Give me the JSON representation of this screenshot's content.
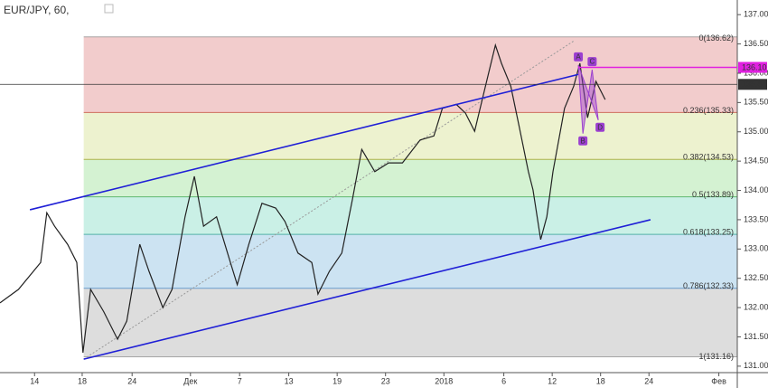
{
  "chart_data": {
    "type": "line",
    "title": "EUR/JPY, 60,",
    "xlim": [
      0,
      96
    ],
    "ylim": [
      130.89,
      137.25
    ],
    "xticks": [
      {
        "value": 4.5,
        "label": "14"
      },
      {
        "value": 10.7,
        "label": "18"
      },
      {
        "value": 17.2,
        "label": "24"
      },
      {
        "value": 24.8,
        "label": "Дек"
      },
      {
        "value": 31.2,
        "label": "7"
      },
      {
        "value": 37.6,
        "label": "13"
      },
      {
        "value": 43.9,
        "label": "19"
      },
      {
        "value": 50.2,
        "label": "23"
      },
      {
        "value": 57.8,
        "label": "2018"
      },
      {
        "value": 65.6,
        "label": "6"
      },
      {
        "value": 71.9,
        "label": "12"
      },
      {
        "value": 78.2,
        "label": "18"
      },
      {
        "value": 84.5,
        "label": "24"
      },
      {
        "value": 93.6,
        "label": "Фев"
      }
    ],
    "yticks": [
      {
        "value": 131,
        "label": "131.00"
      },
      {
        "value": 131.5,
        "label": "131.50"
      },
      {
        "value": 132,
        "label": "132.00"
      },
      {
        "value": 132.5,
        "label": "132.50"
      },
      {
        "value": 133,
        "label": "133.00"
      },
      {
        "value": 133.5,
        "label": "133.50"
      },
      {
        "value": 134,
        "label": "134.00"
      },
      {
        "value": 134.5,
        "label": "134.50"
      },
      {
        "value": 135,
        "label": "135.00"
      },
      {
        "value": 135.5,
        "label": "135.50"
      },
      {
        "value": 136,
        "label": "136.00"
      },
      {
        "value": 136.5,
        "label": "136.50"
      },
      {
        "value": 137,
        "label": "137.00"
      }
    ],
    "series": [
      {
        "color": "#222222",
        "x": [
          0,
          2.4,
          5.3,
          6.1,
          7.1,
          8.8,
          10.0,
          10.8,
          11.8,
          13.5,
          15.3,
          16.5,
          18.2,
          19.4,
          21.2,
          22.4,
          24.1,
          25.3,
          26.5,
          28.2,
          30.0,
          30.9,
          32.4,
          34.1,
          35.9,
          37.1,
          38.8,
          40.6,
          41.4,
          42.9,
          44.5,
          45.9,
          47.1,
          48.8,
          50.6,
          52.4,
          54.7,
          56.5,
          57.6,
          59.4,
          60.6,
          61.8,
          63.5,
          64.5,
          65.3,
          66.5,
          67.6,
          68.8,
          69.4,
          70.4,
          71.2,
          72.0,
          73.5,
          74.7,
          75.5,
          76.5,
          77.6,
          78.8
        ],
        "values": [
          132.08,
          132.31,
          132.77,
          133.62,
          133.39,
          133.08,
          132.77,
          131.23,
          132.31,
          131.93,
          131.46,
          131.77,
          133.08,
          132.62,
          132.0,
          132.31,
          133.55,
          134.24,
          133.39,
          133.55,
          132.77,
          132.39,
          133.08,
          133.78,
          133.7,
          133.47,
          132.93,
          132.77,
          132.23,
          132.62,
          132.93,
          133.85,
          134.7,
          134.32,
          134.47,
          134.47,
          134.86,
          134.93,
          135.4,
          135.47,
          135.32,
          135.01,
          135.94,
          136.48,
          136.17,
          135.78,
          135.09,
          134.32,
          134.01,
          133.16,
          133.55,
          134.32,
          135.4,
          135.78,
          136.17,
          135.24,
          135.86,
          135.55
        ]
      }
    ],
    "fib": {
      "x": [
        10.9,
        96
      ],
      "levels": [
        {
          "label": "0(136.62)",
          "value": 136.62,
          "color": "#888888",
          "fill": "#f2cccc"
        },
        {
          "label": "0.236(135.33)",
          "value": 135.33,
          "color": "#c0392b",
          "fill": "#edf2cf"
        },
        {
          "label": "0.382(134.53)",
          "value": 134.53,
          "color": "#9a9a10",
          "fill": "#d4f2d2"
        },
        {
          "label": "0.5(133.89)",
          "value": 133.89,
          "color": "#2e9e3e",
          "fill": "#caf0e6"
        },
        {
          "label": "0.618(133.25)",
          "value": 133.25,
          "color": "#1e9b8a",
          "fill": "#cce3f2"
        },
        {
          "label": "0.786(132.33)",
          "value": 132.33,
          "color": "#3a7fc0",
          "fill": "#dddddd"
        },
        {
          "label": "1(131.16)",
          "value": 131.16,
          "color": "#888888"
        }
      ]
    },
    "trendlines": [
      {
        "x": [
          3.9,
          75.3
        ],
        "y": [
          133.67,
          135.98
        ],
        "color": "#1f1fd6"
      },
      {
        "x": [
          10.9,
          84.7
        ],
        "y": [
          131.12,
          133.5
        ],
        "color": "#1f1fd6"
      }
    ],
    "dotted": {
      "x": [
        10.9,
        74.7
      ],
      "y": [
        131.12,
        136.55
      ]
    },
    "levels": [
      {
        "label": "136.10",
        "value": 136.1,
        "x0": 75.3,
        "color": "#e020e0"
      },
      {
        "label": "135.81",
        "value": 135.81,
        "x0": 0,
        "color": "#333333"
      }
    ],
    "pattern": {
      "color": "#9b3fd0",
      "points": [
        {
          "label": "A",
          "x": 75.3,
          "y": 136.14
        },
        {
          "label": "B",
          "x": 75.9,
          "y": 134.97
        },
        {
          "label": "C",
          "x": 77.1,
          "y": 136.06
        },
        {
          "label": "D",
          "x": 77.9,
          "y": 135.2
        }
      ]
    }
  }
}
